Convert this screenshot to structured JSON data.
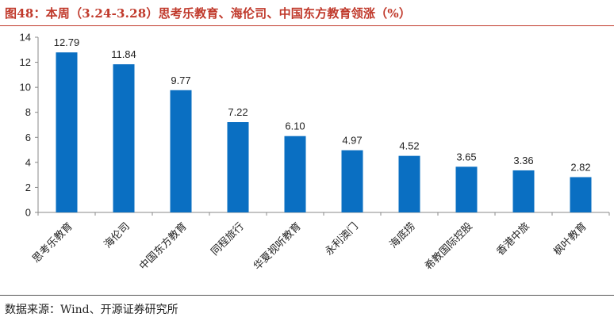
{
  "header": {
    "title": "图48：本周（3.24-3.28）思考乐教育、海伦司、中国东方教育领涨（%）"
  },
  "footer": {
    "source": "数据来源：Wind、开源证券研究所"
  },
  "colors": {
    "bar": "#0a6fc2",
    "title": "#c0392b"
  },
  "chart_data": {
    "type": "bar",
    "title": "本周（3.24-3.28）思考乐教育、海伦司、中国东方教育领涨（%）",
    "categories": [
      "思考乐教育",
      "海伦司",
      "中国东方教育",
      "同程旅行",
      "华夏视听教育",
      "永利澳门",
      "海底捞",
      "希教国际控股",
      "香港中旅",
      "枫叶教育"
    ],
    "values": [
      12.79,
      11.84,
      9.77,
      7.22,
      6.1,
      4.97,
      4.52,
      3.65,
      3.36,
      2.82
    ],
    "value_labels": [
      "12.79",
      "11.84",
      "9.77",
      "7.22",
      "6.10",
      "4.97",
      "4.52",
      "3.65",
      "3.36",
      "2.82"
    ],
    "xlabel": "",
    "ylabel": "",
    "ylim": [
      0,
      14
    ],
    "yticks": [
      0,
      2,
      4,
      6,
      8,
      10,
      12,
      14
    ],
    "grid": false,
    "legend": "none"
  }
}
